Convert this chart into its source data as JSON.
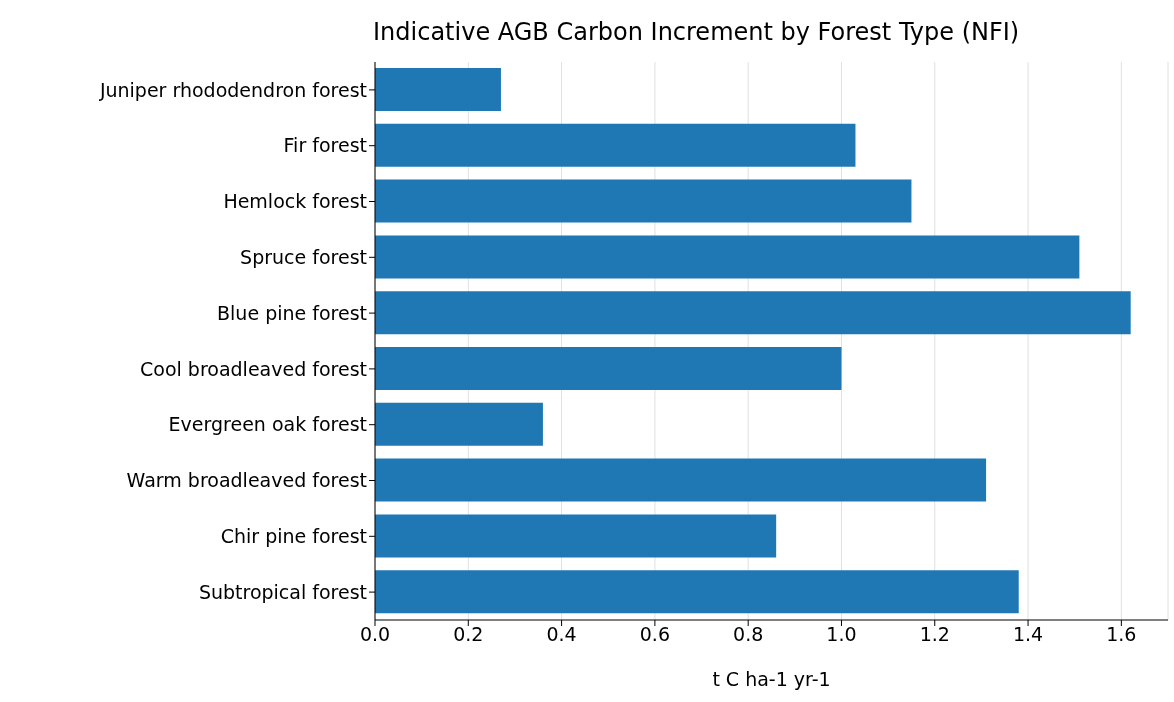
{
  "chart_data": {
    "type": "bar",
    "orientation": "horizontal",
    "title": "Indicative AGB Carbon Increment by Forest Type (NFI)",
    "xlabel": "t C ha-1 yr-1",
    "categories": [
      "Juniper rhododendron forest",
      "Fir forest",
      "Hemlock forest",
      "Spruce forest",
      "Blue pine forest",
      "Cool broadleaved forest",
      "Evergreen oak forest",
      "Warm broadleaved forest",
      "Chir pine forest",
      "Subtropical forest"
    ],
    "values": [
      0.27,
      1.03,
      1.15,
      1.51,
      1.62,
      1.0,
      0.36,
      1.31,
      0.86,
      1.38
    ],
    "color": "#1f77b4",
    "xlim": [
      0,
      1.7
    ],
    "xticks": [
      {
        "value": 0,
        "label": "0.0"
      },
      0.2,
      0.4,
      0.6,
      0.8,
      {
        "value": 1,
        "label": "1.0"
      },
      1.2,
      1.4,
      1.6
    ],
    "grid": "x"
  }
}
